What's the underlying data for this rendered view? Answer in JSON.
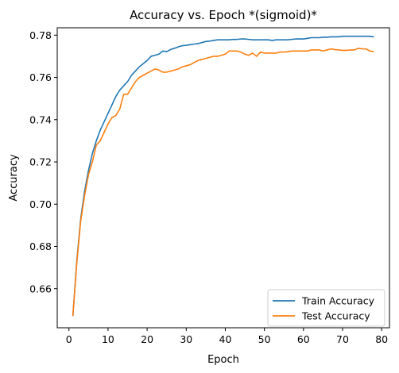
{
  "chart_data": {
    "type": "line",
    "title": "Accuracy vs. Epoch  *(sigmoid)*",
    "xlabel": "Epoch",
    "ylabel": "Accuracy",
    "xlim": [
      -3,
      82
    ],
    "ylim": [
      0.6415,
      0.7835
    ],
    "xticks": [
      0,
      10,
      20,
      30,
      40,
      50,
      60,
      70,
      80
    ],
    "yticks": [
      0.66,
      0.68,
      0.7,
      0.72,
      0.74,
      0.76,
      0.78
    ],
    "ytick_labels": [
      "0.66",
      "0.68",
      "0.70",
      "0.72",
      "0.74",
      "0.76",
      "0.78"
    ],
    "grid": false,
    "legend_position": "lower-right",
    "x": [
      1,
      2,
      3,
      4,
      5,
      6,
      7,
      8,
      9,
      10,
      11,
      12,
      13,
      14,
      15,
      16,
      17,
      18,
      19,
      20,
      21,
      22,
      23,
      24,
      25,
      26,
      27,
      28,
      29,
      30,
      31,
      32,
      33,
      34,
      35,
      36,
      37,
      38,
      39,
      40,
      41,
      42,
      43,
      44,
      45,
      46,
      47,
      48,
      49,
      50,
      51,
      52,
      53,
      54,
      55,
      56,
      57,
      58,
      59,
      60,
      61,
      62,
      63,
      64,
      65,
      66,
      67,
      68,
      69,
      70,
      71,
      72,
      73,
      74,
      75,
      76,
      77,
      78
    ],
    "series": [
      {
        "name": "Train Accuracy",
        "color": "#1f77b4",
        "values": [
          0.647,
          0.673,
          0.693,
          0.706,
          0.716,
          0.724,
          0.73,
          0.735,
          0.739,
          0.743,
          0.747,
          0.751,
          0.754,
          0.756,
          0.758,
          0.761,
          0.763,
          0.765,
          0.7665,
          0.768,
          0.77,
          0.7705,
          0.771,
          0.7725,
          0.7722,
          0.7732,
          0.7738,
          0.7745,
          0.775,
          0.7752,
          0.7755,
          0.7758,
          0.776,
          0.7765,
          0.777,
          0.7772,
          0.7775,
          0.7778,
          0.7778,
          0.7778,
          0.7778,
          0.778,
          0.778,
          0.7782,
          0.7782,
          0.778,
          0.7778,
          0.7778,
          0.7778,
          0.7778,
          0.7778,
          0.7775,
          0.7778,
          0.7778,
          0.7778,
          0.7778,
          0.778,
          0.7782,
          0.7782,
          0.7782,
          0.7785,
          0.7788,
          0.7788,
          0.7788,
          0.779,
          0.779,
          0.7792,
          0.7792,
          0.7792,
          0.7795,
          0.7795,
          0.7795,
          0.7795,
          0.7795,
          0.7795,
          0.7795,
          0.7795,
          0.7792
        ]
      },
      {
        "name": "Test Accuracy",
        "color": "#ff7f0e",
        "values": [
          0.647,
          0.672,
          0.692,
          0.704,
          0.714,
          0.72,
          0.728,
          0.73,
          0.734,
          0.738,
          0.741,
          0.742,
          0.745,
          0.752,
          0.752,
          0.755,
          0.758,
          0.76,
          0.761,
          0.762,
          0.763,
          0.764,
          0.7635,
          0.7625,
          0.7625,
          0.763,
          0.7635,
          0.764,
          0.765,
          0.7655,
          0.766,
          0.767,
          0.768,
          0.7685,
          0.769,
          0.7695,
          0.77,
          0.77,
          0.7705,
          0.771,
          0.7725,
          0.7725,
          0.7725,
          0.772,
          0.771,
          0.7705,
          0.7715,
          0.77,
          0.772,
          0.7715,
          0.7715,
          0.7715,
          0.7715,
          0.772,
          0.772,
          0.7722,
          0.7725,
          0.7725,
          0.7725,
          0.7725,
          0.7725,
          0.773,
          0.773,
          0.773,
          0.7725,
          0.773,
          0.7735,
          0.7732,
          0.773,
          0.7728,
          0.7728,
          0.773,
          0.773,
          0.7738,
          0.7735,
          0.7735,
          0.7725,
          0.7722
        ]
      }
    ]
  }
}
